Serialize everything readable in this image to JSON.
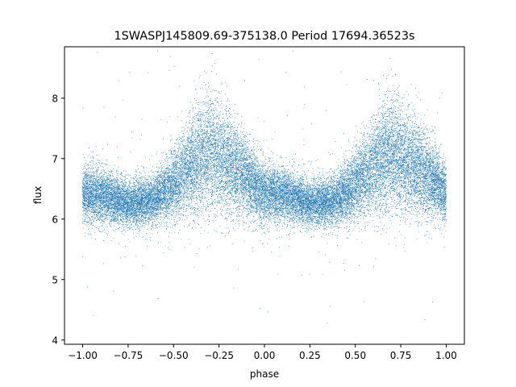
{
  "chart_data": {
    "type": "scatter",
    "title": "1SWASPJ145809.69-375138.0 Period 17694.36523s",
    "xlabel": "phase",
    "ylabel": "flux",
    "xlim": [
      -1.1,
      1.1
    ],
    "ylim": [
      3.93,
      8.85
    ],
    "x_ticks": [
      -1.0,
      -0.75,
      -0.5,
      -0.25,
      0.0,
      0.25,
      0.5,
      0.75,
      1.0
    ],
    "x_tick_labels": [
      "−1.00",
      "−0.75",
      "−0.50",
      "−0.25",
      "0.00",
      "0.25",
      "0.50",
      "0.75",
      "1.00"
    ],
    "y_ticks": [
      4,
      5,
      6,
      7,
      8
    ],
    "y_tick_labels": [
      "4",
      "5",
      "6",
      "7",
      "8"
    ],
    "grid": false,
    "legend": "none",
    "marker_color": "#1f77b4",
    "phase_range": [
      -1.0,
      1.0
    ],
    "point_count": 28000,
    "flux_profile": [
      {
        "phase": -1.0,
        "flux": 6.42
      },
      {
        "phase": -0.875,
        "flux": 6.38
      },
      {
        "phase": -0.75,
        "flux": 6.25
      },
      {
        "phase": -0.625,
        "flux": 6.3
      },
      {
        "phase": -0.5,
        "flux": 6.55
      },
      {
        "phase": -0.375,
        "flux": 6.95
      },
      {
        "phase": -0.3,
        "flux": 7.1
      },
      {
        "phase": -0.25,
        "flux": 7.0
      },
      {
        "phase": -0.125,
        "flux": 6.75
      },
      {
        "phase": 0.0,
        "flux": 6.42
      },
      {
        "phase": 0.125,
        "flux": 6.38
      },
      {
        "phase": 0.25,
        "flux": 6.25
      },
      {
        "phase": 0.375,
        "flux": 6.3
      },
      {
        "phase": 0.5,
        "flux": 6.55
      },
      {
        "phase": 0.625,
        "flux": 6.95
      },
      {
        "phase": 0.7,
        "flux": 7.1
      },
      {
        "phase": 0.75,
        "flux": 7.0
      },
      {
        "phase": 0.875,
        "flux": 6.75
      },
      {
        "phase": 1.0,
        "flux": 6.42
      }
    ]
  }
}
